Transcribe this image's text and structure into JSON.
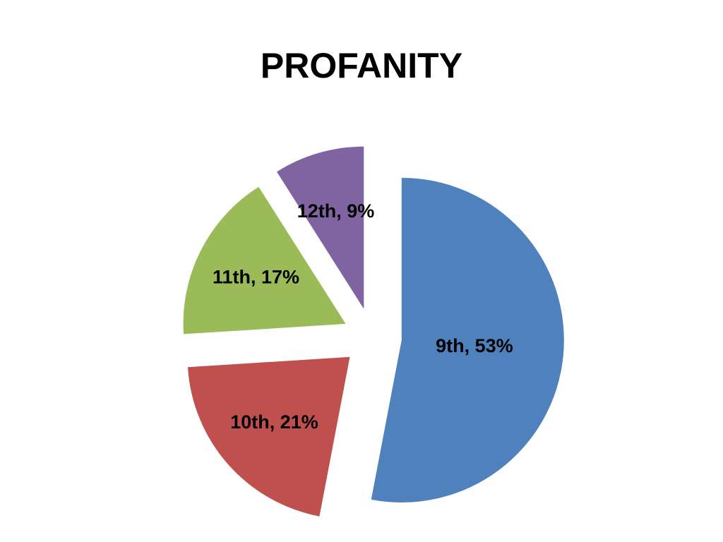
{
  "chart_data": {
    "type": "pie",
    "title": "PROFANITY",
    "categories": [
      "9th",
      "10th",
      "11th",
      "12th"
    ],
    "values": [
      53,
      21,
      17,
      9
    ],
    "value_labels": [
      "9th, 53%",
      "10th, 21%",
      "11th, 17%",
      "12th, 9%"
    ],
    "colors": [
      "#4f81bd",
      "#c0504d",
      "#9bbb59",
      "#8064a2"
    ],
    "exploded": true
  }
}
